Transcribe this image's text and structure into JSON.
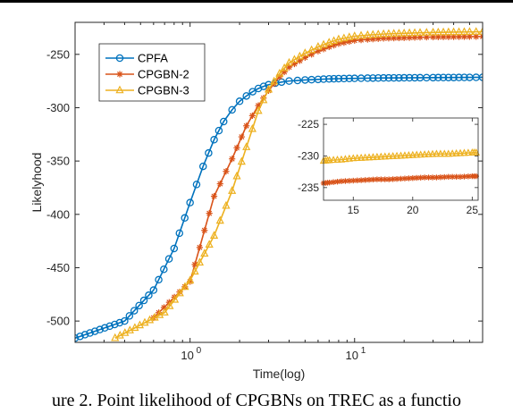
{
  "chart_data": {
    "type": "line",
    "xscale": "log",
    "xlabel": "Time(log)",
    "ylabel": "Likelyhood",
    "xlim": [
      0.2,
      60
    ],
    "ylim": [
      -520,
      -220
    ],
    "yticks": [
      -500,
      -450,
      -400,
      -350,
      -300,
      -250
    ],
    "ytick_labels": [
      "-500",
      "-450",
      "-400",
      "-350",
      "-300",
      "-250"
    ],
    "xticks": [
      1,
      10
    ],
    "xtick_bases": [
      "10",
      "10"
    ],
    "xtick_exponents": [
      "0",
      "1"
    ],
    "grid": false,
    "legend_position": "top-left",
    "series": [
      {
        "name": "CPFA",
        "color": "#0072BD",
        "marker": "circle",
        "x": [
          0.2,
          0.4,
          0.6,
          0.8,
          1.0,
          1.2,
          1.4,
          1.6,
          1.8,
          2.0,
          2.2,
          2.4,
          2.6,
          2.8,
          3.0,
          3.3,
          3.6,
          4.0,
          4.5,
          5,
          6,
          7,
          8,
          10,
          12,
          15,
          20,
          25,
          30,
          40,
          50,
          60
        ],
        "values": [
          -516,
          -500,
          -471,
          -432,
          -389,
          -355,
          -330,
          -313,
          -302,
          -294,
          -289,
          -285,
          -282,
          -280,
          -278.5,
          -277,
          -276,
          -275,
          -274.5,
          -274,
          -273.5,
          -273,
          -272.8,
          -272.5,
          -272.3,
          -272.1,
          -272,
          -271.9,
          -271.8,
          -271.7,
          -271.6,
          -271.5
        ]
      },
      {
        "name": "CPGBN-2",
        "color": "#D95319",
        "marker": "asterisk",
        "x": [
          0.6,
          1.0,
          1.4,
          1.8,
          2.2,
          2.6,
          3.0,
          3.5,
          4.0,
          5,
          6,
          7,
          8,
          10,
          12,
          15,
          20,
          25,
          30,
          40,
          50,
          60
        ],
        "values": [
          -497,
          -463,
          -383,
          -348,
          -317,
          -298,
          -284,
          -271,
          -262,
          -253,
          -247,
          -243,
          -240,
          -237,
          -236,
          -235,
          -234.5,
          -234,
          -233.8,
          -233.6,
          -233.4,
          -233.3
        ]
      },
      {
        "name": "CPGBN-3",
        "color": "#EDB120",
        "marker": "triangle",
        "x": [
          0.35,
          0.7,
          1.0,
          1.4,
          1.8,
          2.2,
          2.6,
          3.0,
          3.5,
          4.0,
          5,
          6,
          7,
          8,
          10,
          12,
          15,
          20,
          25,
          30,
          40,
          50,
          60
        ],
        "values": [
          -516,
          -492,
          -462,
          -420,
          -378,
          -337,
          -303,
          -283,
          -268,
          -258,
          -249,
          -243,
          -239,
          -236,
          -233,
          -232,
          -231,
          -230.3,
          -229.8,
          -229.5,
          -229.2,
          -229.0,
          -228.8
        ]
      }
    ],
    "inset": {
      "xlim": [
        12.5,
        25.5
      ],
      "ylim": [
        -237,
        -224
      ],
      "xticks": [
        15,
        20,
        25
      ],
      "xtick_labels": [
        "15",
        "20",
        "25"
      ],
      "yticks": [
        -235,
        -230,
        -225
      ],
      "ytick_labels": [
        "-235",
        "-230",
        "-225"
      ],
      "series": [
        {
          "name": "CPGBN-2",
          "x": [
            12.5,
            13,
            14,
            15,
            16,
            17,
            18,
            19,
            20,
            21,
            22,
            23,
            24,
            25,
            25.5
          ],
          "values": [
            -234.3,
            -234.2,
            -234.0,
            -233.9,
            -233.8,
            -233.7,
            -233.7,
            -233.6,
            -233.5,
            -233.4,
            -233.4,
            -233.3,
            -233.3,
            -233.2,
            -233.2
          ]
        },
        {
          "name": "CPGBN-3",
          "x": [
            12.5,
            13,
            14,
            15,
            16,
            17,
            18,
            19,
            20,
            21,
            22,
            23,
            24,
            25,
            25.5
          ],
          "values": [
            -230.8,
            -230.7,
            -230.6,
            -230.4,
            -230.3,
            -230.2,
            -230.1,
            -230.0,
            -229.9,
            -229.8,
            -229.7,
            -229.7,
            -229.6,
            -229.5,
            -229.5
          ]
        }
      ]
    }
  },
  "caption": "ure 2. Point likelihood of CPGBNs on TREC as a functio"
}
